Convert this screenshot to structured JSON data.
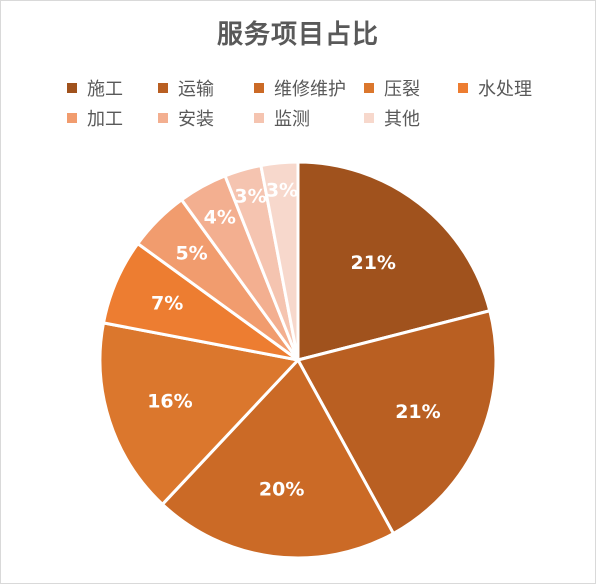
{
  "chart_data": {
    "type": "pie",
    "title": "服务项目占比",
    "legend_position": "top",
    "categories": [
      "施工",
      "运输",
      "维修维护",
      "压裂",
      "水处理",
      "加工",
      "安装",
      "监测",
      "其他"
    ],
    "values": [
      21,
      21,
      20,
      16,
      7,
      5,
      4,
      3,
      3
    ],
    "labels": [
      "21%",
      "21%",
      "20%",
      "16%",
      "7%",
      "5%",
      "4%",
      "3%",
      "3%"
    ],
    "colors": [
      "#A0521D",
      "#B95F22",
      "#CB6A26",
      "#DB772D",
      "#ED7D31",
      "#F19C6E",
      "#F3AF90",
      "#F5C4B0",
      "#F7D8CC"
    ]
  }
}
